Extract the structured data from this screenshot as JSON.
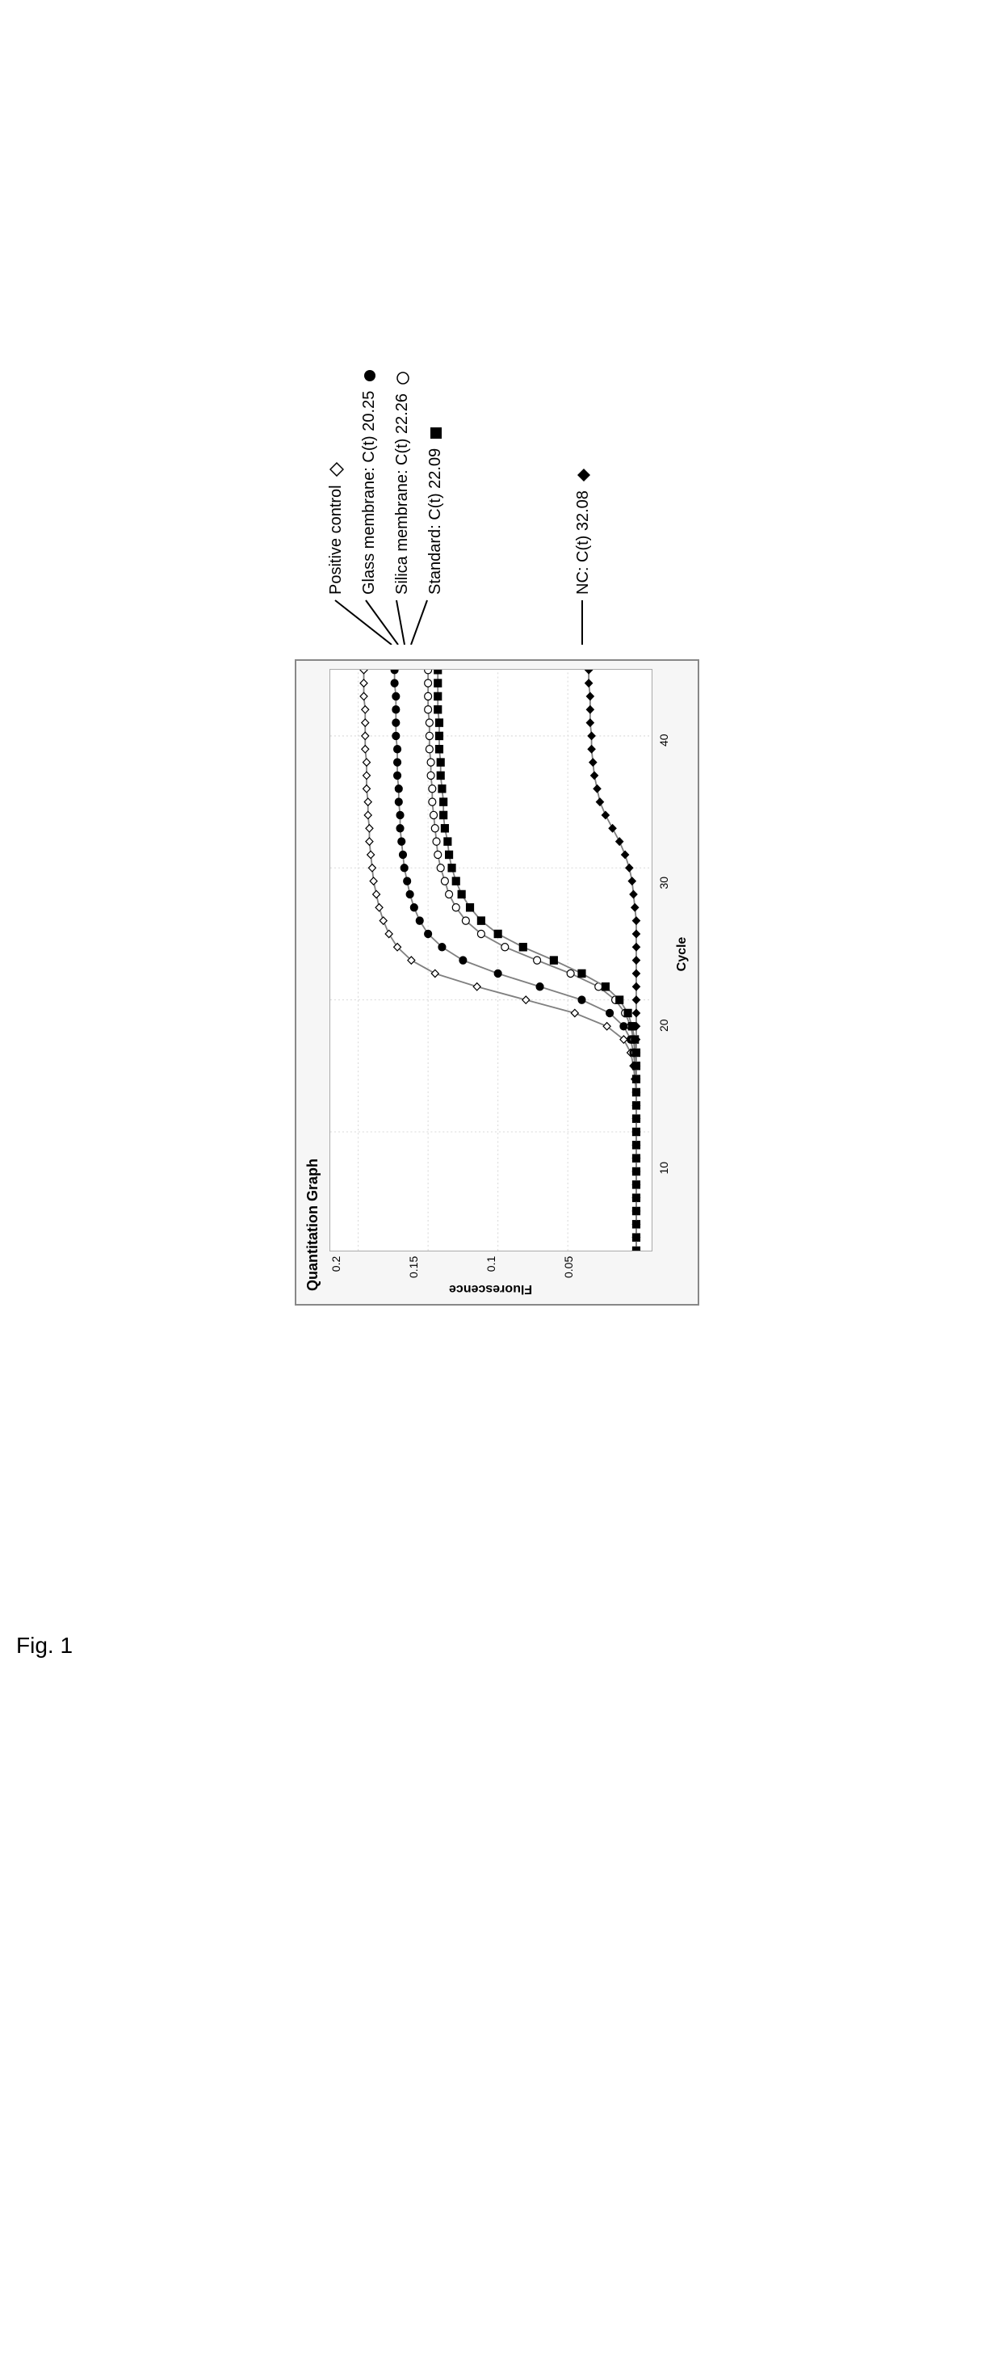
{
  "figure_label": "Fig. 1",
  "chart": {
    "type": "line",
    "title": "Quantitation Graph",
    "xlabel": "Cycle",
    "ylabel": "Fluorescence",
    "background_color": "#ffffff",
    "panel_bg": "#f6f6f6",
    "border_color": "#888888",
    "grid_color": "#d8d8d8",
    "line_color": "#808080",
    "xlim": [
      1,
      45
    ],
    "ylim": [
      -0.01,
      0.22
    ],
    "xtick_labels": [
      "10",
      "20",
      "30",
      "40"
    ],
    "xtick_positions": [
      10,
      20,
      30,
      40
    ],
    "ytick_labels": [
      "0.05",
      "0.1",
      "0.15",
      "0.2"
    ],
    "ytick_positions": [
      0.05,
      0.1,
      0.15,
      0.2
    ],
    "title_fontsize": 18,
    "label_fontsize": 16,
    "tick_fontsize": 14,
    "marker_size": 9,
    "series": [
      {
        "id": "positive_control",
        "label": "Positive control",
        "marker": "diamond-open",
        "marker_fill": "#ffffff",
        "marker_stroke": "#000000",
        "data": [
          [
            1,
            0.001
          ],
          [
            2,
            0.001
          ],
          [
            3,
            0.001
          ],
          [
            4,
            0.001
          ],
          [
            5,
            0.001
          ],
          [
            6,
            0.001
          ],
          [
            7,
            0.001
          ],
          [
            8,
            0.001
          ],
          [
            9,
            0.001
          ],
          [
            10,
            0.001
          ],
          [
            11,
            0.001
          ],
          [
            12,
            0.001
          ],
          [
            13,
            0.001
          ],
          [
            14,
            0.002
          ],
          [
            15,
            0.003
          ],
          [
            16,
            0.005
          ],
          [
            17,
            0.01
          ],
          [
            18,
            0.022
          ],
          [
            19,
            0.045
          ],
          [
            20,
            0.08
          ],
          [
            21,
            0.115
          ],
          [
            22,
            0.145
          ],
          [
            23,
            0.162
          ],
          [
            24,
            0.172
          ],
          [
            25,
            0.178
          ],
          [
            26,
            0.182
          ],
          [
            27,
            0.185
          ],
          [
            28,
            0.187
          ],
          [
            29,
            0.189
          ],
          [
            30,
            0.19
          ],
          [
            31,
            0.191
          ],
          [
            32,
            0.192
          ],
          [
            33,
            0.192
          ],
          [
            34,
            0.193
          ],
          [
            35,
            0.193
          ],
          [
            36,
            0.194
          ],
          [
            37,
            0.194
          ],
          [
            38,
            0.194
          ],
          [
            39,
            0.195
          ],
          [
            40,
            0.195
          ],
          [
            41,
            0.195
          ],
          [
            42,
            0.195
          ],
          [
            43,
            0.196
          ],
          [
            44,
            0.196
          ],
          [
            45,
            0.196
          ]
        ]
      },
      {
        "id": "glass_membrane",
        "label": "Glass membrane: C(t) 20.25",
        "marker": "circle-filled",
        "marker_fill": "#000000",
        "marker_stroke": "#000000",
        "data": [
          [
            1,
            0.001
          ],
          [
            2,
            0.001
          ],
          [
            3,
            0.001
          ],
          [
            4,
            0.001
          ],
          [
            5,
            0.001
          ],
          [
            6,
            0.001
          ],
          [
            7,
            0.001
          ],
          [
            8,
            0.001
          ],
          [
            9,
            0.001
          ],
          [
            10,
            0.001
          ],
          [
            11,
            0.001
          ],
          [
            12,
            0.001
          ],
          [
            13,
            0.001
          ],
          [
            14,
            0.001
          ],
          [
            15,
            0.002
          ],
          [
            16,
            0.003
          ],
          [
            17,
            0.005
          ],
          [
            18,
            0.01
          ],
          [
            19,
            0.02
          ],
          [
            20,
            0.04
          ],
          [
            21,
            0.07
          ],
          [
            22,
            0.1
          ],
          [
            23,
            0.125
          ],
          [
            24,
            0.14
          ],
          [
            25,
            0.15
          ],
          [
            26,
            0.156
          ],
          [
            27,
            0.16
          ],
          [
            28,
            0.163
          ],
          [
            29,
            0.165
          ],
          [
            30,
            0.167
          ],
          [
            31,
            0.168
          ],
          [
            32,
            0.169
          ],
          [
            33,
            0.17
          ],
          [
            34,
            0.17
          ],
          [
            35,
            0.171
          ],
          [
            36,
            0.171
          ],
          [
            37,
            0.172
          ],
          [
            38,
            0.172
          ],
          [
            39,
            0.172
          ],
          [
            40,
            0.173
          ],
          [
            41,
            0.173
          ],
          [
            42,
            0.173
          ],
          [
            43,
            0.173
          ],
          [
            44,
            0.174
          ],
          [
            45,
            0.174
          ]
        ]
      },
      {
        "id": "silica_membrane",
        "label": "Silica membrane: C(t) 22.26",
        "marker": "circle-open",
        "marker_fill": "#ffffff",
        "marker_stroke": "#000000",
        "data": [
          [
            1,
            0.001
          ],
          [
            2,
            0.001
          ],
          [
            3,
            0.001
          ],
          [
            4,
            0.001
          ],
          [
            5,
            0.001
          ],
          [
            6,
            0.001
          ],
          [
            7,
            0.001
          ],
          [
            8,
            0.001
          ],
          [
            9,
            0.001
          ],
          [
            10,
            0.001
          ],
          [
            11,
            0.001
          ],
          [
            12,
            0.001
          ],
          [
            13,
            0.001
          ],
          [
            14,
            0.001
          ],
          [
            15,
            0.001
          ],
          [
            16,
            0.002
          ],
          [
            17,
            0.003
          ],
          [
            18,
            0.005
          ],
          [
            19,
            0.009
          ],
          [
            20,
            0.016
          ],
          [
            21,
            0.028
          ],
          [
            22,
            0.048
          ],
          [
            23,
            0.072
          ],
          [
            24,
            0.095
          ],
          [
            25,
            0.112
          ],
          [
            26,
            0.123
          ],
          [
            27,
            0.13
          ],
          [
            28,
            0.135
          ],
          [
            29,
            0.138
          ],
          [
            30,
            0.141
          ],
          [
            31,
            0.143
          ],
          [
            32,
            0.144
          ],
          [
            33,
            0.145
          ],
          [
            34,
            0.146
          ],
          [
            35,
            0.147
          ],
          [
            36,
            0.147
          ],
          [
            37,
            0.148
          ],
          [
            38,
            0.148
          ],
          [
            39,
            0.149
          ],
          [
            40,
            0.149
          ],
          [
            41,
            0.149
          ],
          [
            42,
            0.15
          ],
          [
            43,
            0.15
          ],
          [
            44,
            0.15
          ],
          [
            45,
            0.15
          ]
        ]
      },
      {
        "id": "standard",
        "label": "Standard: C(t) 22.09",
        "marker": "square-filled",
        "marker_fill": "#000000",
        "marker_stroke": "#000000",
        "data": [
          [
            1,
            0.001
          ],
          [
            2,
            0.001
          ],
          [
            3,
            0.001
          ],
          [
            4,
            0.001
          ],
          [
            5,
            0.001
          ],
          [
            6,
            0.001
          ],
          [
            7,
            0.001
          ],
          [
            8,
            0.001
          ],
          [
            9,
            0.001
          ],
          [
            10,
            0.001
          ],
          [
            11,
            0.001
          ],
          [
            12,
            0.001
          ],
          [
            13,
            0.001
          ],
          [
            14,
            0.001
          ],
          [
            15,
            0.001
          ],
          [
            16,
            0.001
          ],
          [
            17,
            0.002
          ],
          [
            18,
            0.004
          ],
          [
            19,
            0.007
          ],
          [
            20,
            0.013
          ],
          [
            21,
            0.023
          ],
          [
            22,
            0.04
          ],
          [
            23,
            0.06
          ],
          [
            24,
            0.082
          ],
          [
            25,
            0.1
          ],
          [
            26,
            0.112
          ],
          [
            27,
            0.12
          ],
          [
            28,
            0.126
          ],
          [
            29,
            0.13
          ],
          [
            30,
            0.133
          ],
          [
            31,
            0.135
          ],
          [
            32,
            0.136
          ],
          [
            33,
            0.138
          ],
          [
            34,
            0.139
          ],
          [
            35,
            0.139
          ],
          [
            36,
            0.14
          ],
          [
            37,
            0.141
          ],
          [
            38,
            0.141
          ],
          [
            39,
            0.142
          ],
          [
            40,
            0.142
          ],
          [
            41,
            0.142
          ],
          [
            42,
            0.143
          ],
          [
            43,
            0.143
          ],
          [
            44,
            0.143
          ],
          [
            45,
            0.143
          ]
        ]
      },
      {
        "id": "nc",
        "label": "NC: C(t) 32.08",
        "marker": "diamond-filled",
        "marker_fill": "#000000",
        "marker_stroke": "#000000",
        "data": [
          [
            1,
            0.001
          ],
          [
            2,
            0.001
          ],
          [
            3,
            0.001
          ],
          [
            4,
            0.001
          ],
          [
            5,
            0.001
          ],
          [
            6,
            0.001
          ],
          [
            7,
            0.001
          ],
          [
            8,
            0.001
          ],
          [
            9,
            0.001
          ],
          [
            10,
            0.001
          ],
          [
            11,
            0.001
          ],
          [
            12,
            0.001
          ],
          [
            13,
            0.001
          ],
          [
            14,
            0.001
          ],
          [
            15,
            0.001
          ],
          [
            16,
            0.001
          ],
          [
            17,
            0.001
          ],
          [
            18,
            0.001
          ],
          [
            19,
            0.001
          ],
          [
            20,
            0.001
          ],
          [
            21,
            0.001
          ],
          [
            22,
            0.001
          ],
          [
            23,
            0.001
          ],
          [
            24,
            0.001
          ],
          [
            25,
            0.001
          ],
          [
            26,
            0.001
          ],
          [
            27,
            0.002
          ],
          [
            28,
            0.003
          ],
          [
            29,
            0.004
          ],
          [
            30,
            0.006
          ],
          [
            31,
            0.009
          ],
          [
            32,
            0.013
          ],
          [
            33,
            0.018
          ],
          [
            34,
            0.023
          ],
          [
            35,
            0.027
          ],
          [
            36,
            0.029
          ],
          [
            37,
            0.031
          ],
          [
            38,
            0.032
          ],
          [
            39,
            0.033
          ],
          [
            40,
            0.033
          ],
          [
            41,
            0.034
          ],
          [
            42,
            0.034
          ],
          [
            43,
            0.034
          ],
          [
            44,
            0.035
          ],
          [
            45,
            0.035
          ]
        ]
      }
    ]
  },
  "legend": {
    "top": [
      "Positive control",
      "Glass membrane: C(t) 20.25",
      "Silica membrane: C(t) 22.26",
      "Standard: C(t) 22.09"
    ],
    "bottom": [
      "NC: C(t) 32.08"
    ]
  }
}
